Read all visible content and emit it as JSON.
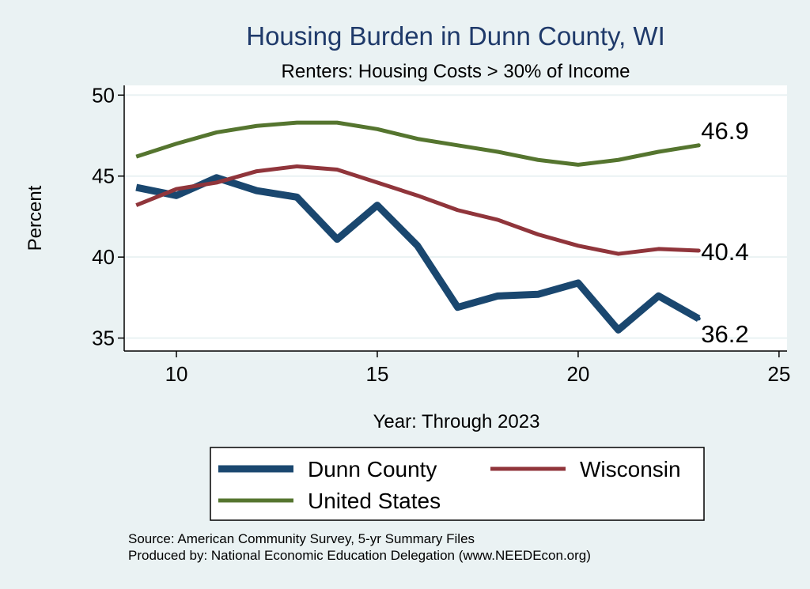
{
  "chart_data": {
    "type": "line",
    "title": "Housing Burden in Dunn County, WI",
    "subtitle": "Renters: Housing Costs > 30% of Income",
    "xlabel": "Year: Through 2023",
    "ylabel": "Percent",
    "xlim": [
      8.7,
      25.2
    ],
    "ylim": [
      34.2,
      50.6
    ],
    "xticks": [
      10,
      15,
      20,
      25
    ],
    "yticks": [
      35,
      40,
      45,
      50
    ],
    "grid": true,
    "legend_position": "bottom",
    "series": [
      {
        "name": "Dunn County",
        "color": "#1a476f",
        "width": 9,
        "x": [
          9,
          10,
          11,
          12,
          13,
          14,
          15,
          16,
          17,
          18,
          19,
          20,
          21,
          22,
          23
        ],
        "values": [
          44.3,
          43.8,
          44.9,
          44.1,
          43.7,
          41.1,
          43.2,
          40.7,
          36.9,
          37.6,
          37.7,
          38.4,
          35.5,
          37.6,
          36.2
        ],
        "end_label": "36.2"
      },
      {
        "name": "Wisconsin",
        "color": "#90353b",
        "width": 5,
        "x": [
          9,
          10,
          11,
          12,
          13,
          14,
          15,
          16,
          17,
          18,
          19,
          20,
          21,
          22,
          23
        ],
        "values": [
          43.2,
          44.2,
          44.6,
          45.3,
          45.6,
          45.4,
          44.6,
          43.8,
          42.9,
          42.3,
          41.4,
          40.7,
          40.2,
          40.5,
          40.4
        ],
        "end_label": "40.4"
      },
      {
        "name": "United States",
        "color": "#55752f",
        "width": 5,
        "x": [
          9,
          10,
          11,
          12,
          13,
          14,
          15,
          16,
          17,
          18,
          19,
          20,
          21,
          22,
          23
        ],
        "values": [
          46.2,
          47.0,
          47.7,
          48.1,
          48.3,
          48.3,
          47.9,
          47.3,
          46.9,
          46.5,
          46.0,
          45.7,
          46.0,
          46.5,
          46.9
        ],
        "end_label": "46.9"
      }
    ],
    "legend_order": [
      0,
      1,
      2
    ]
  },
  "footer": {
    "source": "Source: American Community Survey, 5-yr Summary Files",
    "producer": "Produced by: National Economic Education Delegation (www.NEEDEcon.org)"
  }
}
